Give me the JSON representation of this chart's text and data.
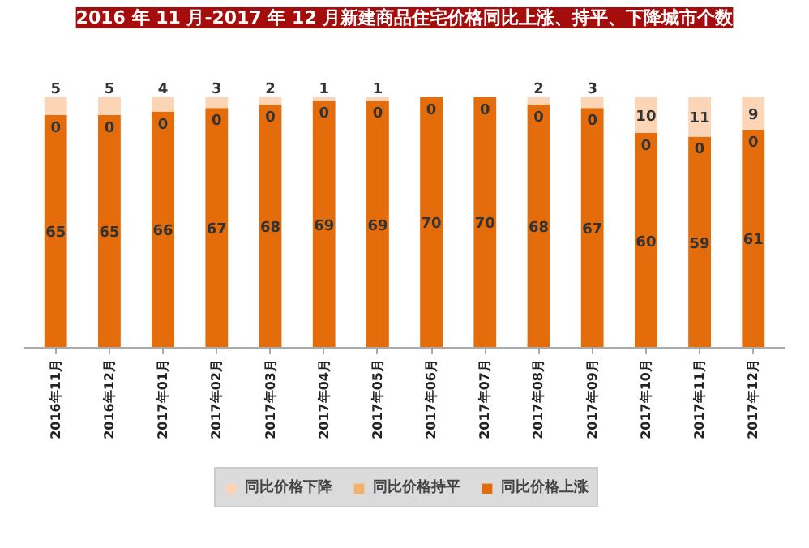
{
  "chart_data": {
    "type": "bar",
    "title": "2016 年 11 月-2017 年 12 月新建商品住宅价格同比上涨、持平、下降城市个数",
    "categories": [
      "2016年11月",
      "2016年12月",
      "2017年01月",
      "2017年02月",
      "2017年03月",
      "2017年04月",
      "2017年05月",
      "2017年06月",
      "2017年07月",
      "2017年08月",
      "2017年09月",
      "2017年10月",
      "2017年11月",
      "2017年12月"
    ],
    "stacked": true,
    "data_labels": true,
    "legend": "bottom",
    "grid": false,
    "tick_labels": "x",
    "series": [
      {
        "name": "同比价格上涨",
        "color": "#e46c0a",
        "values": [
          65,
          65,
          66,
          67,
          68,
          69,
          69,
          70,
          70,
          68,
          67,
          60,
          59,
          61
        ]
      },
      {
        "name": "同比价格持平",
        "color": "#f5b169",
        "values": [
          0,
          0,
          0,
          0,
          0,
          0,
          0,
          0,
          0,
          0,
          0,
          0,
          0,
          0
        ]
      },
      {
        "name": "同比价格下降",
        "color": "#fbd5b5",
        "values": [
          5,
          5,
          4,
          3,
          2,
          1,
          1,
          0,
          0,
          2,
          3,
          10,
          11,
          9
        ],
        "value_labels": [
          "5",
          "5",
          "4",
          "3",
          "2",
          "1",
          "1",
          null,
          null,
          "2",
          "3",
          "10",
          "11",
          "9"
        ]
      }
    ]
  }
}
